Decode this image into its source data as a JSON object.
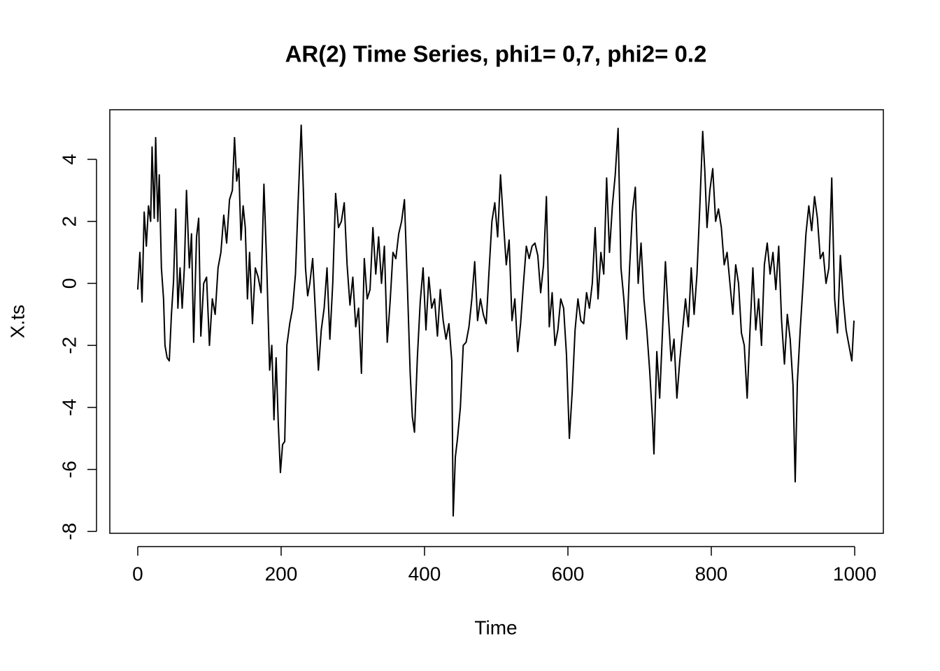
{
  "chart_data": {
    "type": "line",
    "title": "AR(2) Time Series, phi1= 0,7, phi2= 0.2",
    "x_label": "Time",
    "y_label": "X.ts",
    "xlim": [
      -38.96,
      1039.96
    ],
    "ylim": [
      -8.06,
      5.6
    ],
    "xticks": [
      0,
      200,
      400,
      600,
      800,
      1000
    ],
    "yticks": [
      -8,
      -6,
      -4,
      -2,
      0,
      2,
      4
    ],
    "color": "#000000",
    "x": [
      0,
      3,
      6,
      9,
      12,
      15,
      18,
      20,
      23,
      25,
      28,
      30,
      33,
      36,
      38,
      41,
      44,
      47,
      50,
      53,
      56,
      59,
      62,
      65,
      68,
      72,
      75,
      78,
      82,
      85,
      88,
      92,
      96,
      100,
      104,
      108,
      112,
      116,
      120,
      124,
      128,
      132,
      135,
      138,
      141,
      144,
      147,
      150,
      153,
      156,
      160,
      164,
      168,
      172,
      176,
      180,
      184,
      187,
      190,
      193,
      196,
      199,
      202,
      205,
      208,
      212,
      216,
      220,
      224,
      228,
      231,
      234,
      237,
      240,
      244,
      248,
      252,
      256,
      260,
      264,
      268,
      272,
      276,
      280,
      284,
      288,
      292,
      296,
      300,
      304,
      308,
      312,
      316,
      320,
      324,
      328,
      332,
      336,
      340,
      344,
      348,
      352,
      356,
      360,
      364,
      368,
      372,
      376,
      380,
      383,
      386,
      390,
      394,
      398,
      402,
      406,
      410,
      414,
      418,
      422,
      426,
      430,
      434,
      438,
      440,
      443,
      446,
      450,
      454,
      458,
      462,
      466,
      470,
      474,
      478,
      482,
      486,
      490,
      494,
      498,
      502,
      506,
      510,
      514,
      518,
      522,
      526,
      530,
      534,
      538,
      542,
      546,
      550,
      554,
      558,
      562,
      566,
      570,
      574,
      578,
      582,
      586,
      590,
      594,
      598,
      602,
      606,
      610,
      614,
      618,
      622,
      626,
      630,
      634,
      638,
      642,
      646,
      650,
      654,
      658,
      662,
      666,
      670,
      674,
      678,
      682,
      686,
      690,
      694,
      698,
      702,
      706,
      710,
      714,
      718,
      720,
      724,
      728,
      732,
      736,
      740,
      744,
      748,
      752,
      756,
      760,
      764,
      768,
      772,
      776,
      780,
      784,
      788,
      791,
      794,
      798,
      802,
      806,
      810,
      814,
      818,
      822,
      826,
      830,
      834,
      838,
      842,
      846,
      850,
      854,
      858,
      862,
      866,
      870,
      874,
      878,
      882,
      886,
      890,
      894,
      898,
      902,
      906,
      910,
      914,
      917,
      920,
      924,
      928,
      932,
      936,
      940,
      944,
      948,
      952,
      956,
      960,
      964,
      968,
      972,
      976,
      980,
      984,
      988,
      992,
      996,
      999
    ],
    "values": [
      -0.2,
      1.0,
      -0.6,
      2.3,
      1.2,
      2.5,
      2.0,
      4.4,
      2.1,
      4.7,
      2.0,
      3.5,
      0.5,
      -0.5,
      -2.0,
      -2.4,
      -2.5,
      -1.0,
      0.1,
      2.4,
      -0.8,
      0.5,
      -0.8,
      0.5,
      3.0,
      0.5,
      1.6,
      -1.9,
      1.5,
      2.1,
      -1.7,
      0.0,
      0.2,
      -2.0,
      -0.5,
      -1.0,
      0.5,
      1.0,
      2.2,
      1.3,
      2.7,
      3.0,
      4.7,
      3.3,
      3.7,
      1.4,
      2.5,
      1.8,
      -0.5,
      1.0,
      -1.3,
      0.5,
      0.2,
      -0.3,
      3.2,
      0.5,
      -2.8,
      -2.0,
      -4.4,
      -2.4,
      -4.5,
      -6.1,
      -5.2,
      -5.1,
      -2.0,
      -1.3,
      -0.8,
      0.3,
      2.8,
      5.1,
      3.0,
      0.5,
      -0.4,
      0.0,
      0.8,
      -1.0,
      -2.8,
      -1.5,
      -0.8,
      0.5,
      -1.8,
      0.0,
      2.9,
      1.8,
      2.0,
      2.6,
      0.6,
      -0.7,
      0.2,
      -1.4,
      -0.8,
      -2.9,
      0.8,
      -0.5,
      -0.2,
      1.8,
      0.3,
      1.5,
      0.0,
      1.2,
      -1.9,
      -0.6,
      1.0,
      0.8,
      1.6,
      2.0,
      2.7,
      0.0,
      -2.9,
      -4.3,
      -4.8,
      -2.4,
      -0.6,
      0.5,
      -1.5,
      0.2,
      -0.8,
      -0.5,
      -1.7,
      -0.2,
      -1.2,
      -1.8,
      -1.3,
      -2.5,
      -7.5,
      -5.6,
      -5.0,
      -4.0,
      -2.0,
      -1.9,
      -1.4,
      -0.5,
      0.7,
      -1.2,
      -0.5,
      -1.0,
      -1.3,
      0.4,
      2.0,
      2.6,
      1.5,
      3.5,
      2.0,
      0.6,
      1.4,
      -1.2,
      -0.5,
      -2.2,
      -1.3,
      0.0,
      1.2,
      0.8,
      1.2,
      1.3,
      0.9,
      -0.3,
      0.6,
      2.8,
      -1.4,
      -0.3,
      -2.0,
      -1.5,
      -0.5,
      -0.8,
      -2.3,
      -5.0,
      -3.5,
      -1.5,
      -0.5,
      -1.2,
      -1.3,
      -0.3,
      -0.8,
      0.0,
      1.8,
      -0.5,
      1.0,
      0.3,
      3.4,
      1.0,
      2.5,
      3.5,
      5.0,
      0.5,
      -0.5,
      -1.8,
      0.5,
      2.3,
      3.1,
      0.0,
      1.3,
      -0.5,
      -1.5,
      -2.8,
      -4.4,
      -5.5,
      -2.2,
      -3.7,
      -1.5,
      0.7,
      -1.0,
      -2.5,
      -1.8,
      -3.7,
      -2.5,
      -1.5,
      -0.5,
      -1.4,
      0.5,
      -1.0,
      0.3,
      2.5,
      4.9,
      3.6,
      1.8,
      3.0,
      3.7,
      2.0,
      2.4,
      1.8,
      0.6,
      1.0,
      0.0,
      -1.0,
      0.6,
      0.0,
      -1.6,
      -2.0,
      -3.7,
      -1.5,
      0.5,
      -1.5,
      -0.5,
      -2.0,
      0.6,
      1.3,
      0.3,
      1.0,
      -0.2,
      1.2,
      -1.2,
      -2.6,
      -1.0,
      -1.8,
      -3.3,
      -6.4,
      -3.2,
      -1.5,
      0.0,
      1.6,
      2.5,
      1.7,
      2.8,
      2.1,
      0.8,
      1.0,
      0.0,
      0.5,
      3.4,
      -0.5,
      -1.6,
      0.9,
      -0.5,
      -1.5,
      -2.0,
      -2.5,
      -1.2
    ]
  }
}
